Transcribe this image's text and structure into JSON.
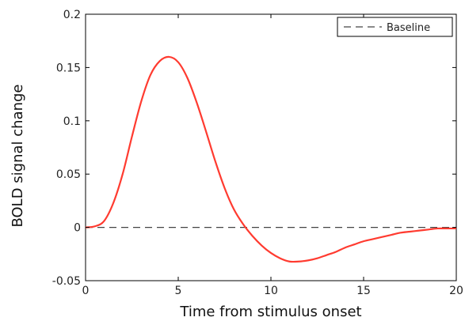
{
  "chart_data": {
    "type": "line",
    "title": "",
    "xlabel": "Time from stimulus onset",
    "ylabel": "BOLD signal change",
    "xlim": [
      0,
      20
    ],
    "ylim": [
      -0.05,
      0.2
    ],
    "xticks": [
      0,
      5,
      10,
      15,
      20
    ],
    "xtick_labels": [
      "0",
      "5",
      "10",
      "15",
      "20"
    ],
    "yticks": [
      -0.05,
      0,
      0.05,
      0.1,
      0.15,
      0.2
    ],
    "ytick_labels": [
      "-0.05",
      "0",
      "0.05",
      "0.1",
      "0.15",
      "0.2"
    ],
    "grid": false,
    "legend": {
      "placement": "top-right",
      "entries": [
        "Baseline"
      ]
    },
    "series": [
      {
        "color": "#ff3b30",
        "line_style": "solid",
        "x": [
          0,
          0.5,
          1,
          1.5,
          2,
          2.5,
          3,
          3.5,
          4,
          4.5,
          5,
          5.5,
          6,
          6.5,
          7,
          7.5,
          8,
          8.5,
          9,
          9.5,
          10,
          10.5,
          11,
          11.5,
          12,
          12.5,
          13,
          13.5,
          14,
          14.5,
          15,
          15.5,
          16,
          16.5,
          17,
          17.5,
          18,
          18.5,
          19,
          19.5,
          20
        ],
        "y": [
          0,
          0.001,
          0.006,
          0.023,
          0.05,
          0.085,
          0.118,
          0.143,
          0.156,
          0.16,
          0.155,
          0.14,
          0.117,
          0.09,
          0.062,
          0.037,
          0.017,
          0.003,
          -0.008,
          -0.017,
          -0.024,
          -0.029,
          -0.032,
          -0.032,
          -0.031,
          -0.029,
          -0.026,
          -0.023,
          -0.019,
          -0.016,
          -0.013,
          -0.011,
          -0.009,
          -0.007,
          -0.005,
          -0.004,
          -0.003,
          -0.002,
          -0.001,
          -0.001,
          -0.001
        ]
      },
      {
        "name": "Baseline",
        "color": "#444444",
        "line_style": "dashed",
        "x": [
          0,
          20
        ],
        "y": [
          0,
          0
        ]
      }
    ]
  }
}
